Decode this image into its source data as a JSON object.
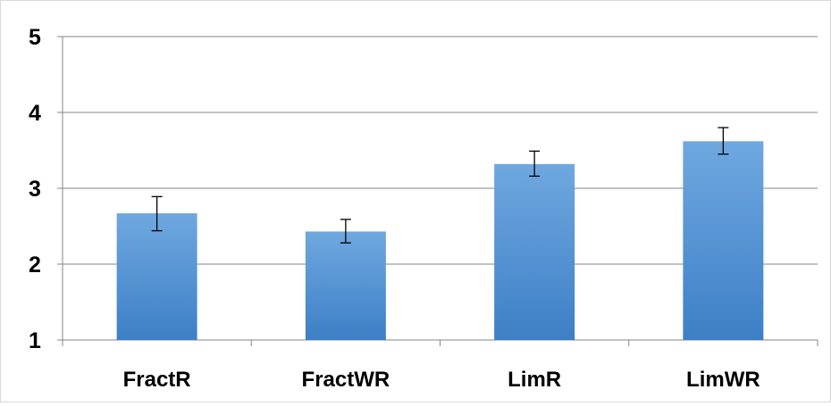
{
  "chart_data": {
    "type": "bar",
    "categories": [
      "FractR",
      "FractWR",
      "LimR",
      "LimWR"
    ],
    "values": [
      2.67,
      2.43,
      3.32,
      3.62
    ],
    "error_upper": [
      2.89,
      2.59,
      3.49,
      3.8
    ],
    "error_lower": [
      2.44,
      2.28,
      3.16,
      3.45
    ],
    "ylim": [
      1,
      5
    ],
    "yticks": [
      "1",
      "2",
      "3",
      "4",
      "5"
    ],
    "grid": true,
    "legend": "none",
    "title": "",
    "xlabel": "",
    "ylabel": "",
    "colors": {
      "bar_top": "#6fa8e0",
      "bar_bottom": "#3d7fc6",
      "grid": "#868686",
      "error_bar": "#000000"
    }
  }
}
